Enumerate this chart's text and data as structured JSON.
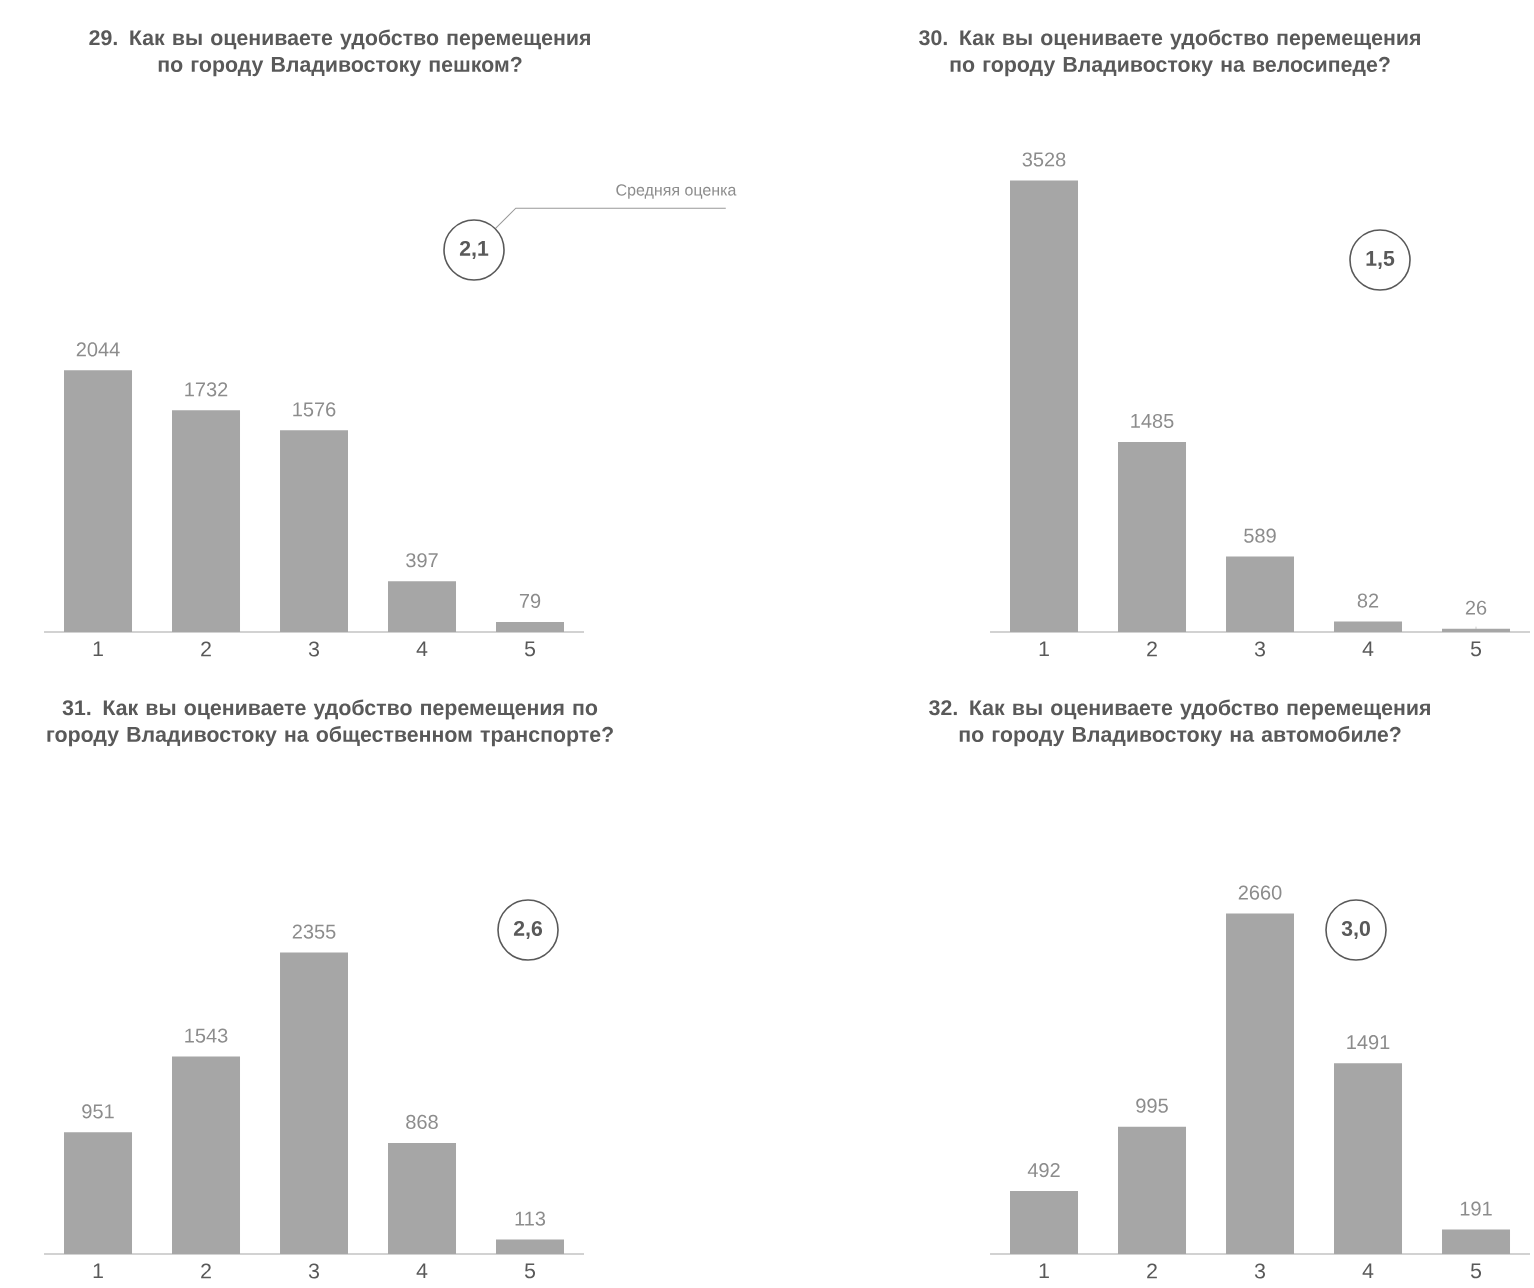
{
  "chart_data": [
    {
      "type": "bar",
      "title": "29. Как вы оцениваете удобство перемещения по городу Владивостоку пешком?",
      "categories": [
        "1",
        "2",
        "3",
        "4",
        "5"
      ],
      "values": [
        2044,
        1732,
        1576,
        397,
        79
      ],
      "color": "#a6a6a6",
      "data_labels": true,
      "tick_labels": "x",
      "annotations": [
        "2,1",
        "Средняя оценка"
      ]
    },
    {
      "type": "bar",
      "title": "30. Как вы оцениваете удобство перемещения по городу Владивостоку на велосипеде?",
      "categories": [
        "1",
        "2",
        "3",
        "4",
        "5"
      ],
      "values": [
        3528,
        1485,
        589,
        82,
        26
      ],
      "color": "#a6a6a6",
      "data_labels": true,
      "tick_labels": "x",
      "annotations": [
        "1,5"
      ]
    },
    {
      "type": "bar",
      "title": "31. Как вы оцениваете удобство перемещения по городу Владивостоку на общественном транспорте?",
      "categories": [
        "1",
        "2",
        "3",
        "4",
        "5"
      ],
      "values": [
        951,
        1543,
        2355,
        868,
        113
      ],
      "color": "#a6a6a6",
      "data_labels": true,
      "tick_labels": "x",
      "annotations": [
        "2,6"
      ]
    },
    {
      "type": "bar",
      "title": "32. Как вы оцениваете удобство перемещения по городу Владивостоку на автомобиле?",
      "categories": [
        "1",
        "2",
        "3",
        "4",
        "5"
      ],
      "values": [
        492,
        995,
        2660,
        1491,
        191
      ],
      "color": "#a6a6a6",
      "data_labels": true,
      "tick_labels": "x",
      "annotations": [
        "3,0"
      ]
    }
  ]
}
